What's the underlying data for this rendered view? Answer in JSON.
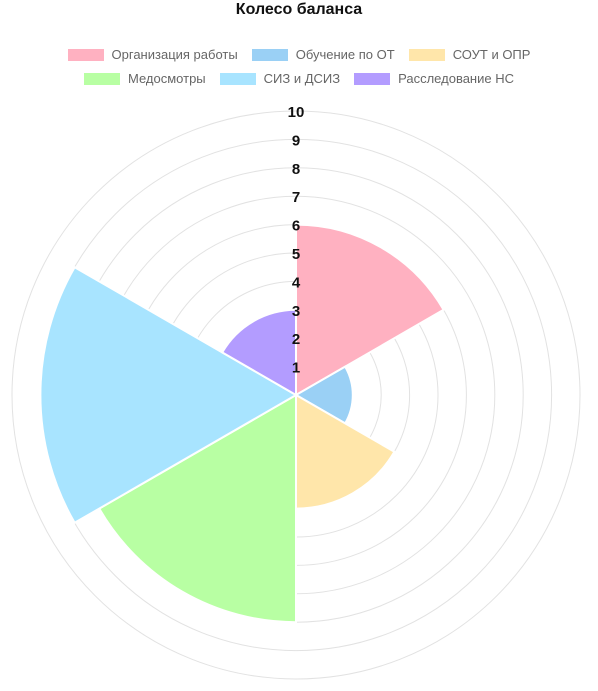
{
  "chart_data": {
    "type": "polarArea",
    "title": "Колесо баланса",
    "categories": [
      "Организация работы",
      "Обучение по ОТ",
      "СОУТ и ОПР",
      "Медосмотры",
      "СИЗ и ДСИЗ",
      "Расследование НС"
    ],
    "values": [
      6,
      2,
      4,
      8,
      9,
      3
    ],
    "colors": [
      "#ffb1c1",
      "#9ad0f5",
      "#ffe6aa",
      "#b8ffa3",
      "#a8e4ff",
      "#b39cff"
    ],
    "rlim": [
      0,
      10
    ],
    "ticks": [
      "1",
      "2",
      "3",
      "4",
      "5",
      "6",
      "7",
      "8",
      "9",
      "10"
    ],
    "legend_position": "top",
    "grid": true
  }
}
